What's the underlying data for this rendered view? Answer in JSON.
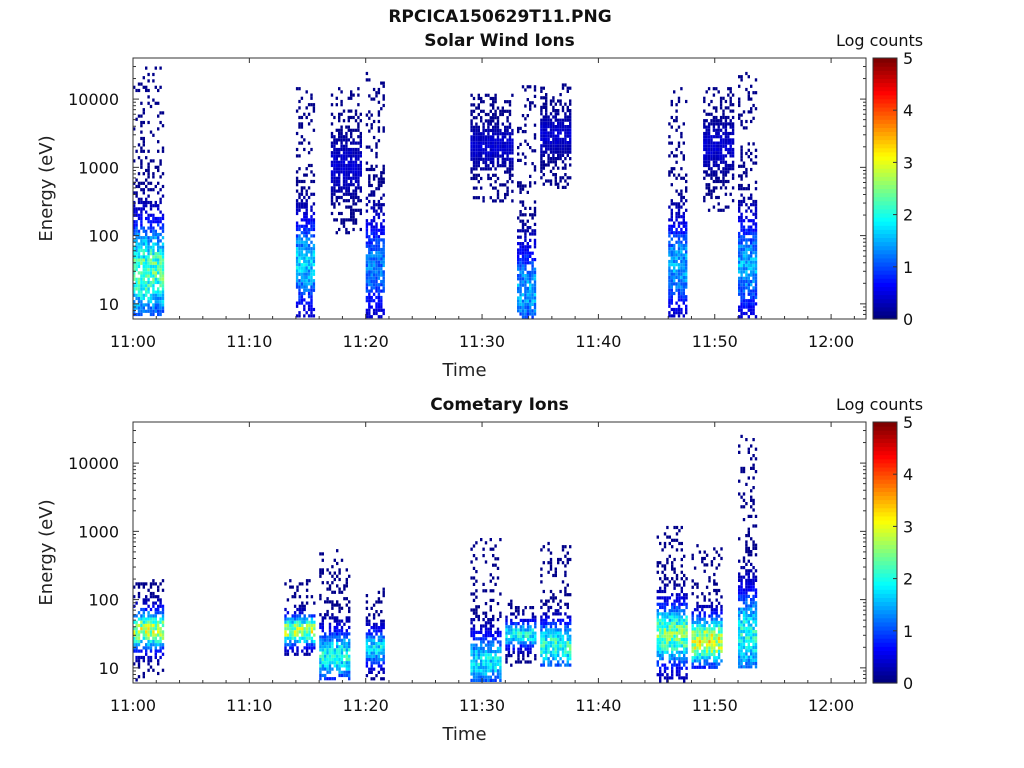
{
  "page": {
    "title": "RPCICA150629T11.PNG"
  },
  "colorbar": {
    "label": "Log counts",
    "range": [
      0,
      5
    ],
    "ticks": [
      "0",
      "1",
      "2",
      "3",
      "4",
      "5"
    ],
    "colormap": "jet"
  },
  "chart_data": [
    {
      "type": "heatmap",
      "title": "Solar Wind Ions",
      "xlabel": "Time",
      "ylabel": "Energy (eV)",
      "x_ticks": [
        "11:00",
        "11:10",
        "11:20",
        "11:30",
        "11:40",
        "11:50",
        "12:00"
      ],
      "xlim_minutes_after_11": [
        0,
        63
      ],
      "y_ticks": [
        "10",
        "100",
        "1000",
        "10000"
      ],
      "y_scale": "log",
      "ylim": [
        6,
        40000
      ],
      "colorbar_label": "Log counts",
      "clim": [
        0,
        5
      ],
      "bursts": [
        {
          "time": "11:00-11:02",
          "energy_range_eV": [
            6,
            30000
          ],
          "peak_energy_eV": 30,
          "peak_log_counts": 2.8
        },
        {
          "time": "11:14-11:15",
          "energy_range_eV": [
            6,
            15000
          ],
          "peak_energy_eV": 38,
          "peak_log_counts": 2.0
        },
        {
          "time": "11:17-11:19",
          "energy_range_eV": [
            100,
            15000
          ],
          "peak_energy_eV": 1000,
          "peak_log_counts": 0.5
        },
        {
          "time": "11:20-11:21",
          "energy_range_eV": [
            6,
            25000
          ],
          "peak_energy_eV": 35,
          "peak_log_counts": 1.5
        },
        {
          "time": "11:29-11:32",
          "energy_range_eV": [
            300,
            12000
          ],
          "peak_energy_eV": 2000,
          "peak_log_counts": 0.5
        },
        {
          "time": "11:33-11:34",
          "energy_range_eV": [
            6,
            16000
          ],
          "peak_energy_eV": 15,
          "peak_log_counts": 1.8
        },
        {
          "time": "11:35-11:37",
          "energy_range_eV": [
            500,
            17000
          ],
          "peak_energy_eV": 3000,
          "peak_log_counts": 0.5
        },
        {
          "time": "11:46-11:47",
          "energy_range_eV": [
            6,
            15000
          ],
          "peak_energy_eV": 35,
          "peak_log_counts": 1.8
        },
        {
          "time": "11:49-11:51",
          "energy_range_eV": [
            200,
            15000
          ],
          "peak_energy_eV": 2000,
          "peak_log_counts": 0.5
        },
        {
          "time": "11:52-11:53",
          "energy_range_eV": [
            6,
            25000
          ],
          "peak_energy_eV": 35,
          "peak_log_counts": 1.8
        }
      ]
    },
    {
      "type": "heatmap",
      "title": "Cometary Ions",
      "xlabel": "Time",
      "ylabel": "Energy (eV)",
      "x_ticks": [
        "11:00",
        "11:10",
        "11:20",
        "11:30",
        "11:40",
        "11:50",
        "12:00"
      ],
      "xlim_minutes_after_11": [
        0,
        63
      ],
      "y_ticks": [
        "10",
        "100",
        "1000",
        "10000"
      ],
      "y_scale": "log",
      "ylim": [
        6,
        40000
      ],
      "colorbar_label": "Log counts",
      "clim": [
        0,
        5
      ],
      "bursts": [
        {
          "time": "11:00-11:02",
          "energy_range_eV": [
            6,
            200
          ],
          "peak_energy_eV": 35,
          "peak_log_counts": 3.4
        },
        {
          "time": "11:13-11:15",
          "energy_range_eV": [
            15,
            200
          ],
          "peak_energy_eV": 35,
          "peak_log_counts": 3.4
        },
        {
          "time": "11:16-11:18",
          "energy_range_eV": [
            6,
            550
          ],
          "peak_energy_eV": 15,
          "peak_log_counts": 2.4
        },
        {
          "time": "11:20-11:21",
          "energy_range_eV": [
            6,
            150
          ],
          "peak_energy_eV": 20,
          "peak_log_counts": 2.2
        },
        {
          "time": "11:29-11:31",
          "energy_range_eV": [
            6,
            800
          ],
          "peak_energy_eV": 12,
          "peak_log_counts": 2.2
        },
        {
          "time": "11:32-11:34",
          "energy_range_eV": [
            10,
            100
          ],
          "peak_energy_eV": 30,
          "peak_log_counts": 2.4
        },
        {
          "time": "11:35-11:37",
          "energy_range_eV": [
            10,
            700
          ],
          "peak_energy_eV": 20,
          "peak_log_counts": 2.6
        },
        {
          "time": "11:45-11:47",
          "energy_range_eV": [
            6,
            1200
          ],
          "peak_energy_eV": 30,
          "peak_log_counts": 3.0
        },
        {
          "time": "11:48-11:50",
          "energy_range_eV": [
            10,
            650
          ],
          "peak_energy_eV": 25,
          "peak_log_counts": 3.6
        },
        {
          "time": "11:52-11:53",
          "energy_range_eV": [
            10,
            26000
          ],
          "peak_energy_eV": 30,
          "peak_log_counts": 2.4
        }
      ]
    }
  ]
}
